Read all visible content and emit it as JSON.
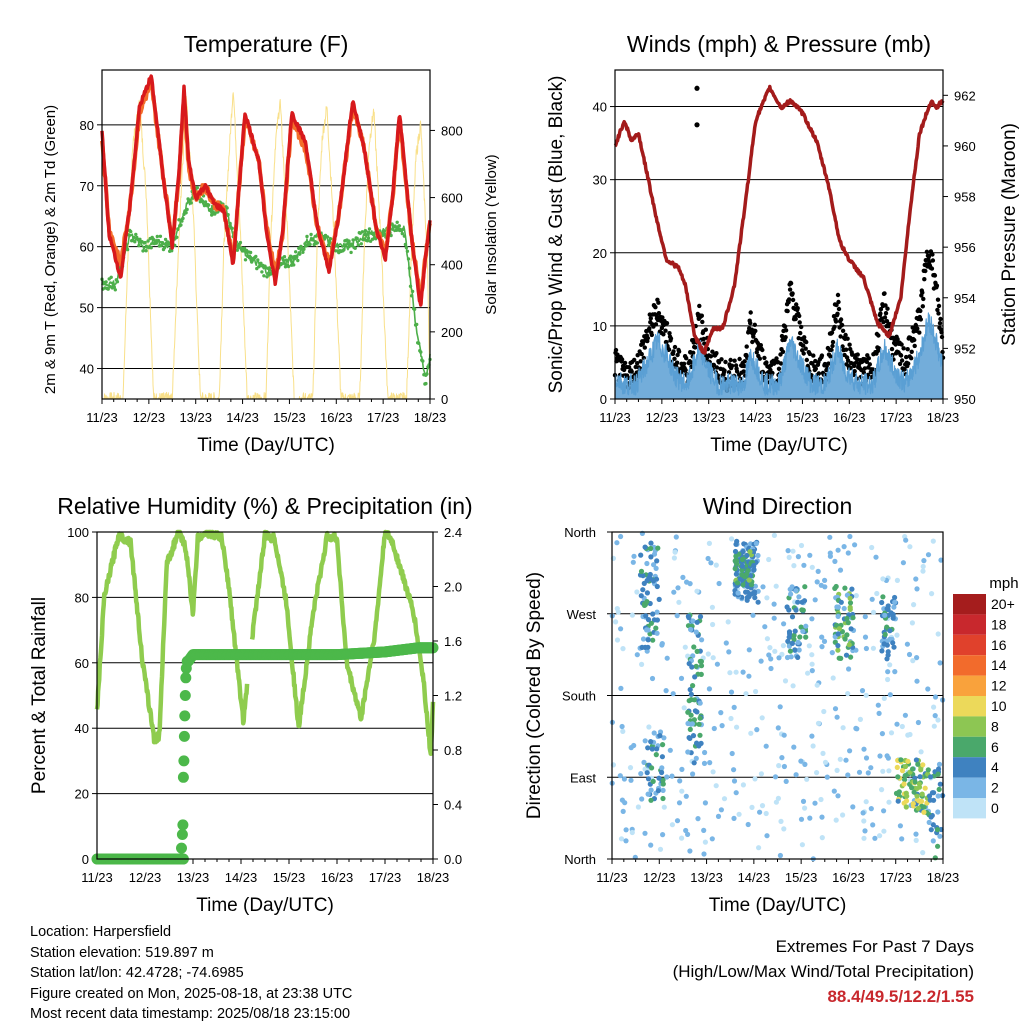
{
  "footer": {
    "location": "Location: Harpersfield",
    "elevation": "Station elevation: 519.897 m",
    "latlon": "Station lat/lon: 42.4728; -74.6985",
    "created": "Figure created on Mon, 2025-08-18, at 23:38 UTC",
    "recent": "Most recent data timestamp: 2025/08/18 23:15:00"
  },
  "extremes": {
    "title": "Extremes For Past 7 Days",
    "subtitle": "(High/Low/Max Wind/Total Precipitation)",
    "values": "88.4/49.5/12.2/1.55"
  },
  "colors": {
    "temp2m": "#d7191c",
    "temp9m": "#f46d2a",
    "dewpoint": "#4daf4a",
    "solar": "#f9e08a",
    "wind": "#5a9fd4",
    "gust": "#000000",
    "pressure": "#a31b1b",
    "rh": "#8fcc4e",
    "precip": "#4cb84a"
  },
  "chart_data": [
    {
      "type": "line",
      "title": "Temperature (F)",
      "xlabel": "Time (Day/UTC)",
      "ylabel": "2m & 9m T (Red, Orange) & 2m Td (Green)",
      "y2label": "Solar Insolation (Yellow)",
      "x_ticks": [
        "11/23",
        "12/23",
        "13/23",
        "14/23",
        "15/23",
        "16/23",
        "17/23",
        "18/23"
      ],
      "xlim": [
        0,
        7
      ],
      "ylim": [
        35,
        89
      ],
      "y_ticks": [
        40,
        50,
        60,
        70,
        80
      ],
      "y2lim": [
        0,
        980
      ],
      "y2_ticks": [
        0,
        200,
        400,
        600,
        800
      ],
      "grid": "horizontal",
      "series": [
        {
          "name": "2m T",
          "x": [
            0,
            0.15,
            0.4,
            0.6,
            0.8,
            1.05,
            1.3,
            1.5,
            1.65,
            1.75,
            1.85,
            2.0,
            2.2,
            2.4,
            2.6,
            2.8,
            3.05,
            3.35,
            3.5,
            3.7,
            3.85,
            4.05,
            4.35,
            4.6,
            4.85,
            5.05,
            5.35,
            5.6,
            5.85,
            6.05,
            6.2,
            6.35,
            6.6,
            6.8,
            6.9,
            7.0
          ],
          "y": [
            79,
            62,
            55,
            67,
            83,
            88,
            72,
            60,
            73,
            86,
            74,
            68,
            70,
            67,
            66,
            57,
            82,
            74,
            63,
            54,
            62,
            82,
            77,
            63,
            56,
            65,
            84,
            76,
            63,
            58,
            68,
            82,
            62,
            50,
            58,
            64
          ]
        },
        {
          "name": "9m T",
          "x": [
            0,
            0.15,
            0.4,
            0.6,
            0.8,
            1.05,
            1.3,
            1.5,
            1.65,
            1.75,
            1.85,
            2.0,
            2.2,
            2.4,
            2.6,
            2.8,
            3.05,
            3.35,
            3.5,
            3.7,
            3.85,
            4.05,
            4.35,
            4.6,
            4.85,
            5.05,
            5.35,
            5.6,
            5.85,
            6.05,
            6.2,
            6.35,
            6.6,
            6.8,
            6.9,
            7.0
          ],
          "y": [
            78,
            63,
            57,
            67,
            82,
            87,
            72,
            61,
            72,
            85,
            73,
            68,
            70,
            67,
            66,
            58,
            81,
            74,
            64,
            55,
            62,
            81,
            76,
            63,
            57,
            65,
            83,
            76,
            63,
            59,
            68,
            81,
            62,
            51,
            58,
            64
          ]
        },
        {
          "name": "2m Td",
          "x": [
            0,
            0.3,
            0.6,
            0.9,
            1.2,
            1.5,
            1.75,
            2.0,
            2.3,
            2.6,
            2.9,
            3.2,
            3.5,
            3.8,
            4.1,
            4.4,
            4.7,
            5.0,
            5.3,
            5.6,
            5.9,
            6.2,
            6.45,
            6.7,
            6.9,
            7.0
          ],
          "y": [
            54,
            54,
            62,
            60,
            61,
            60,
            66,
            69,
            66,
            67,
            60,
            58,
            56,
            57,
            58,
            61,
            62,
            60,
            60,
            62,
            62,
            63,
            63,
            47,
            38,
            42
          ]
        },
        {
          "name": "Solar",
          "axis": "y2",
          "x": [
            0,
            0.1,
            0.2,
            0.35,
            0.45,
            0.55,
            0.65,
            0.8,
            0.95,
            1.1,
            1.4,
            1.5,
            1.6,
            1.7,
            1.8,
            1.95,
            2.1,
            2.4,
            2.5,
            2.6,
            2.7,
            2.8,
            2.95,
            3.1,
            3.4,
            3.5,
            3.6,
            3.7,
            3.8,
            3.95,
            4.1,
            4.4,
            4.5,
            4.6,
            4.7,
            4.8,
            4.95,
            5.1,
            5.4,
            5.5,
            5.6,
            5.7,
            5.8,
            5.95,
            6.1,
            6.4,
            6.5,
            6.6,
            6.7,
            6.8,
            6.95,
            7.0
          ],
          "y": [
            0,
            0,
            0,
            0,
            0,
            420,
            750,
            880,
            600,
            0,
            0,
            0,
            350,
            650,
            900,
            550,
            0,
            0,
            0,
            450,
            700,
            930,
            500,
            0,
            0,
            0,
            480,
            760,
            890,
            520,
            0,
            0,
            0,
            500,
            780,
            870,
            500,
            0,
            0,
            0,
            470,
            760,
            860,
            480,
            0,
            0,
            0,
            420,
            720,
            820,
            400,
            0
          ]
        }
      ]
    },
    {
      "type": "line",
      "title": "Winds (mph) & Pressure (mb)",
      "xlabel": "Time (Day/UTC)",
      "ylabel": "Sonic/Prop Wind & Gust (Blue, Black)",
      "y2label": "Station Pressure (Maroon)",
      "x_ticks": [
        "11/23",
        "12/23",
        "13/23",
        "14/23",
        "15/23",
        "16/23",
        "17/23",
        "18/23"
      ],
      "xlim": [
        0,
        7
      ],
      "ylim": [
        0,
        45
      ],
      "y_ticks": [
        0,
        10,
        20,
        30,
        40
      ],
      "y2lim": [
        950,
        963
      ],
      "y2_ticks": [
        950,
        952,
        954,
        956,
        958,
        960,
        962
      ],
      "grid": "horizontal",
      "series": [
        {
          "name": "Wind",
          "x": [
            0,
            0.2,
            0.45,
            0.7,
            0.9,
            1.1,
            1.3,
            1.55,
            1.8,
            2.0,
            2.2,
            2.4,
            2.6,
            2.75,
            2.9,
            3.2,
            3.5,
            3.75,
            3.95,
            4.2,
            4.5,
            4.75,
            4.9,
            5.2,
            5.5,
            5.75,
            5.95,
            6.2,
            6.5,
            6.7,
            6.85,
            7.0
          ],
          "y": [
            3,
            2,
            2,
            5,
            8,
            6,
            3,
            2,
            7,
            4,
            2,
            2,
            2,
            2,
            6,
            2,
            2,
            8,
            5,
            2,
            2,
            7,
            4,
            2,
            2,
            7,
            4,
            2,
            6,
            11,
            8,
            4
          ]
        },
        {
          "name": "Gust",
          "x": [
            0,
            0.2,
            0.45,
            0.7,
            0.9,
            1.1,
            1.3,
            1.55,
            1.8,
            2.0,
            2.2,
            2.4,
            2.6,
            2.75,
            2.9,
            3.2,
            3.5,
            3.75,
            3.95,
            4.2,
            4.5,
            4.75,
            4.9,
            5.2,
            5.5,
            5.75,
            5.95,
            6.2,
            6.5,
            6.7,
            6.85,
            7.0
          ],
          "y": [
            5,
            3,
            4,
            9,
            12,
            9,
            5,
            4,
            11,
            6,
            4,
            3,
            4,
            3,
            10,
            4,
            4,
            15,
            9,
            4,
            4,
            13,
            7,
            4,
            4,
            13,
            7,
            5,
            11,
            21,
            15,
            7
          ]
        },
        {
          "name": "Gust outliers",
          "x": [
            1.75,
            1.75
          ],
          "y": [
            42.5,
            37.5
          ]
        },
        {
          "name": "Pressure",
          "axis": "y2",
          "x": [
            0,
            0.2,
            0.35,
            0.5,
            0.65,
            0.9,
            1.1,
            1.35,
            1.5,
            1.7,
            1.9,
            2.1,
            2.3,
            2.55,
            2.8,
            3.0,
            3.3,
            3.55,
            3.75,
            4.0,
            4.3,
            4.55,
            4.8,
            5.0,
            5.3,
            5.6,
            5.85,
            6.1,
            6.3,
            6.5,
            6.75,
            6.85,
            7.0
          ],
          "y": [
            960,
            961,
            960.2,
            960.5,
            959.2,
            957,
            955.5,
            955.2,
            954.5,
            952.5,
            951.8,
            952.8,
            952.8,
            954.5,
            958,
            961,
            962.3,
            961.5,
            961.8,
            961.3,
            960.2,
            958.5,
            956.2,
            955.5,
            954.8,
            953,
            952.5,
            954,
            957.5,
            960.5,
            961.8,
            961.5,
            961.8
          ]
        }
      ]
    },
    {
      "type": "line",
      "title": "Relative Humidity (%) & Precipitation (in)",
      "xlabel": "Time (Day/UTC)",
      "ylabel": "Percent & Total Rainfall",
      "x_ticks": [
        "11/23",
        "12/23",
        "13/23",
        "14/23",
        "15/23",
        "16/23",
        "17/23",
        "18/23"
      ],
      "xlim": [
        0,
        7
      ],
      "ylim": [
        0,
        100
      ],
      "y_ticks": [
        0,
        20,
        40,
        60,
        80,
        100
      ],
      "y2lim": [
        0,
        2.4
      ],
      "y2_ticks": [
        "0.0",
        "0.4",
        "0.8",
        "1.2",
        "1.6",
        "2.0",
        "2.4"
      ],
      "grid": "horizontal",
      "series": [
        {
          "name": "RH",
          "x": [
            0,
            0.15,
            0.45,
            0.7,
            0.95,
            1.2,
            1.3,
            1.45,
            1.7,
            1.85,
            2.0,
            2.1,
            2.25,
            2.5,
            2.6,
            2.75,
            2.9,
            3.05,
            3.25,
            3.5,
            3.7,
            3.95,
            4.2,
            4.5,
            4.8,
            5.0,
            5.2,
            5.5,
            5.8,
            6.0,
            6.15,
            6.4,
            6.6,
            6.8,
            6.95,
            7.0
          ],
          "y": [
            45,
            80,
            99,
            97,
            60,
            36,
            38,
            90,
            100,
            95,
            75,
            98,
            100,
            99,
            98,
            83,
            62,
            42,
            70,
            99,
            98,
            78,
            40,
            75,
            99,
            98,
            60,
            43,
            70,
            100,
            97,
            85,
            75,
            55,
            32,
            47
          ]
        },
        {
          "name": "Precip",
          "axis": "y2",
          "x": [
            0,
            0.5,
            1.0,
            1.5,
            1.75,
            1.78,
            1.8,
            1.82,
            1.85,
            1.9,
            2.0,
            3.0,
            4.0,
            5.0,
            6.0,
            6.7,
            7.0
          ],
          "y": [
            0,
            0,
            0,
            0,
            0.02,
            0.15,
            0.6,
            0.9,
            1.2,
            1.45,
            1.5,
            1.5,
            1.5,
            1.5,
            1.52,
            1.55,
            1.55
          ]
        }
      ]
    },
    {
      "type": "scatter",
      "title": "Wind Direction",
      "xlabel": "Time (Day/UTC)",
      "ylabel": "Direction (Colored By Speed)",
      "x_ticks": [
        "11/23",
        "12/23",
        "13/23",
        "14/23",
        "15/23",
        "16/23",
        "17/23",
        "18/23"
      ],
      "xlim": [
        0,
        7
      ],
      "ylim": [
        0,
        360
      ],
      "y_ticks": [
        "North",
        "East",
        "South",
        "West",
        "North"
      ],
      "grid": "horizontal",
      "legend_title": "mph",
      "legend_position": "right",
      "legend": [
        {
          "label": "20+",
          "color": "#a51d1d"
        },
        {
          "label": "18",
          "color": "#c8282d"
        },
        {
          "label": "16",
          "color": "#e0412c"
        },
        {
          "label": "14",
          "color": "#f26b2c"
        },
        {
          "label": "12",
          "color": "#f9a23c"
        },
        {
          "label": "10",
          "color": "#ecd95a"
        },
        {
          "label": "8",
          "color": "#8dc653"
        },
        {
          "label": "6",
          "color": "#4aa86b"
        },
        {
          "label": "4",
          "color": "#3f82c0"
        },
        {
          "label": "2",
          "color": "#7ab6e6"
        },
        {
          "label": "0",
          "color": "#bfe3f7"
        }
      ]
    }
  ]
}
